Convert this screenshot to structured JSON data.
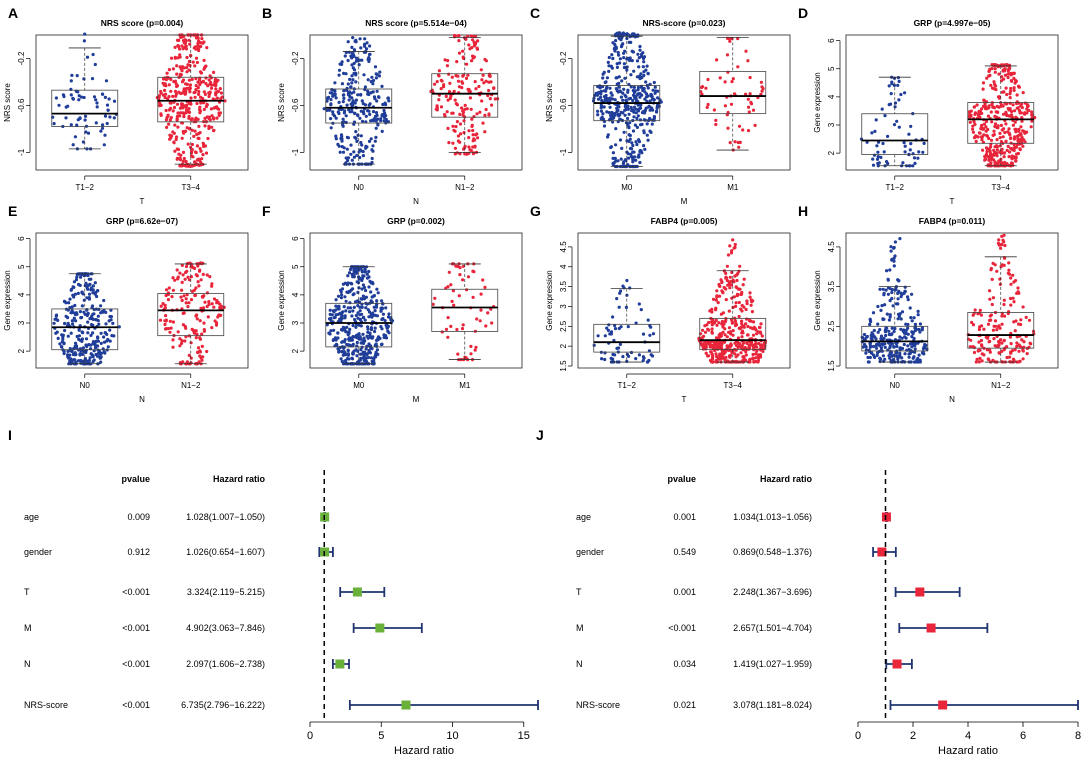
{
  "chart_data": [
    {
      "type": "beeswarm-boxplot",
      "label": "A",
      "title": "NRS score (p=0.004)",
      "ylabel": "NRS score",
      "xlabel": "T",
      "ylim": [
        -1.15,
        0.0
      ],
      "yticks": [
        -1.0,
        -0.6,
        -0.2
      ],
      "groups": [
        {
          "name": "T1−2",
          "color": "#1f3d99",
          "n": 70,
          "min": -0.97,
          "q1": -0.78,
          "median": -0.67,
          "q3": -0.47,
          "max": -0.11,
          "lo": -0.97,
          "hi": 0.02
        },
        {
          "name": "T3−4",
          "color": "#e8253a",
          "n": 420,
          "min": -1.1,
          "q1": -0.74,
          "median": -0.56,
          "q3": -0.36,
          "max": 0.0,
          "lo": -1.12,
          "hi": 0.0
        }
      ]
    },
    {
      "type": "beeswarm-boxplot",
      "label": "B",
      "title": "NRS score (p=5.514e−04)",
      "ylabel": "NRS score",
      "xlabel": "N",
      "ylim": [
        -1.15,
        0.0
      ],
      "yticks": [
        -1.0,
        -0.6,
        -0.2
      ],
      "groups": [
        {
          "name": "N0",
          "color": "#1f3d99",
          "n": 300,
          "min": -1.1,
          "q1": -0.75,
          "median": -0.62,
          "q3": -0.46,
          "max": -0.14,
          "lo": -1.1,
          "hi": -0.02
        },
        {
          "name": "N1−2",
          "color": "#e8253a",
          "n": 190,
          "min": -1.0,
          "q1": -0.7,
          "median": -0.5,
          "q3": -0.33,
          "max": -0.02,
          "lo": -1.02,
          "hi": 0.0
        }
      ]
    },
    {
      "type": "beeswarm-boxplot",
      "label": "C",
      "title": "NRS-score (p=0.023)",
      "ylabel": "NRS score",
      "xlabel": "M",
      "ylim": [
        -1.15,
        0.0
      ],
      "yticks": [
        -1.0,
        -0.6,
        -0.2
      ],
      "groups": [
        {
          "name": "M0",
          "color": "#1f3d99",
          "n": 450,
          "min": -1.12,
          "q1": -0.73,
          "median": -0.58,
          "q3": -0.43,
          "max": -0.01,
          "lo": -1.12,
          "hi": 0.02
        },
        {
          "name": "M1",
          "color": "#e8253a",
          "n": 60,
          "min": -0.98,
          "q1": -0.67,
          "median": -0.52,
          "q3": -0.31,
          "max": -0.02,
          "lo": -0.98,
          "hi": -0.04
        }
      ]
    },
    {
      "type": "beeswarm-boxplot",
      "label": "D",
      "title": "GRP (p=4.997e−05)",
      "ylabel": "Gene expression",
      "xlabel": "T",
      "ylim": [
        1.4,
        6.2
      ],
      "yticks": [
        2,
        3,
        4,
        5,
        6
      ],
      "groups": [
        {
          "name": "T1−2",
          "color": "#1f3d99",
          "n": 70,
          "min": 1.55,
          "q1": 1.95,
          "median": 2.45,
          "q3": 3.4,
          "max": 4.7,
          "lo": 1.55,
          "hi": 4.7
        },
        {
          "name": "T3−4",
          "color": "#e8253a",
          "n": 420,
          "min": 1.55,
          "q1": 2.35,
          "median": 3.2,
          "q3": 3.8,
          "max": 5.1,
          "lo": 1.55,
          "hi": 5.15
        }
      ]
    },
    {
      "type": "beeswarm-boxplot",
      "label": "E",
      "title": "GRP (p=6.62e−07)",
      "ylabel": "Gene expression",
      "xlabel": "N",
      "ylim": [
        1.4,
        6.2
      ],
      "yticks": [
        2,
        3,
        4,
        5,
        6
      ],
      "groups": [
        {
          "name": "N0",
          "color": "#1f3d99",
          "n": 300,
          "min": 1.55,
          "q1": 2.05,
          "median": 2.85,
          "q3": 3.5,
          "max": 4.75,
          "lo": 1.55,
          "hi": 4.75
        },
        {
          "name": "N1−2",
          "color": "#e8253a",
          "n": 190,
          "min": 1.55,
          "q1": 2.55,
          "median": 3.45,
          "q3": 4.05,
          "max": 5.1,
          "lo": 1.55,
          "hi": 5.15
        }
      ]
    },
    {
      "type": "beeswarm-boxplot",
      "label": "F",
      "title": "GRP (p=0.002)",
      "ylabel": "Gene expression",
      "xlabel": "M",
      "ylim": [
        1.4,
        6.2
      ],
      "yticks": [
        2,
        3,
        4,
        5,
        6
      ],
      "groups": [
        {
          "name": "M0",
          "color": "#1f3d99",
          "n": 450,
          "min": 1.55,
          "q1": 2.15,
          "median": 3.0,
          "q3": 3.7,
          "max": 5.0,
          "lo": 1.55,
          "hi": 5.0
        },
        {
          "name": "M1",
          "color": "#e8253a",
          "n": 60,
          "min": 1.7,
          "q1": 2.7,
          "median": 3.55,
          "q3": 4.2,
          "max": 5.1,
          "lo": 1.7,
          "hi": 5.1
        }
      ]
    },
    {
      "type": "beeswarm-boxplot",
      "label": "G",
      "title": "FABP4 (p=0.005)",
      "ylabel": "Gene expression",
      "xlabel": "T",
      "ylim": [
        1.45,
        4.85
      ],
      "yticks": [
        1.5,
        2.0,
        2.5,
        3.0,
        3.5,
        4.0,
        4.5
      ],
      "groups": [
        {
          "name": "T1−2",
          "color": "#1f3d99",
          "n": 70,
          "min": 1.6,
          "q1": 1.85,
          "median": 2.1,
          "q3": 2.55,
          "max": 3.45,
          "lo": 1.6,
          "hi": 3.7
        },
        {
          "name": "T3−4",
          "color": "#e8253a",
          "n": 420,
          "min": 1.6,
          "q1": 1.92,
          "median": 2.15,
          "q3": 2.7,
          "max": 3.9,
          "lo": 1.6,
          "hi": 4.75
        }
      ]
    },
    {
      "type": "beeswarm-boxplot",
      "label": "H",
      "title": "FABP4 (p=0.011)",
      "ylabel": "Gene expression",
      "xlabel": "N",
      "ylim": [
        1.45,
        4.85
      ],
      "yticks": [
        1.5,
        2.5,
        3.5,
        4.5
      ],
      "groups": [
        {
          "name": "N0",
          "color": "#1f3d99",
          "n": 300,
          "min": 1.6,
          "q1": 1.88,
          "median": 2.12,
          "q3": 2.5,
          "max": 3.5,
          "lo": 1.6,
          "hi": 4.75
        },
        {
          "name": "N1−2",
          "color": "#e8253a",
          "n": 190,
          "min": 1.6,
          "q1": 1.95,
          "median": 2.28,
          "q3": 2.85,
          "max": 4.25,
          "lo": 1.6,
          "hi": 4.8
        }
      ]
    },
    {
      "type": "forest",
      "label": "I",
      "headers": {
        "pvalue": "pvalue",
        "hr": "Hazard ratio"
      },
      "xlabel": "Hazard ratio",
      "xlim": [
        0,
        16
      ],
      "xticks": [
        0,
        5,
        10,
        15
      ],
      "refline": 1,
      "color": "#6ab13a",
      "rows": [
        {
          "name": "age",
          "pvalue": "0.009",
          "hr_text": "1.028(1.007−1.050)",
          "hr": 1.028,
          "lo": 1.007,
          "hi": 1.05
        },
        {
          "name": "gender",
          "pvalue": "0.912",
          "hr_text": "1.026(0.654−1.607)",
          "hr": 1.026,
          "lo": 0.654,
          "hi": 1.607
        },
        {
          "name": "T",
          "pvalue": "<0.001",
          "hr_text": "3.324(2.119−5.215)",
          "hr": 3.324,
          "lo": 2.119,
          "hi": 5.215
        },
        {
          "name": "M",
          "pvalue": "<0.001",
          "hr_text": "4.902(3.063−7.846)",
          "hr": 4.902,
          "lo": 3.063,
          "hi": 7.846
        },
        {
          "name": "N",
          "pvalue": "<0.001",
          "hr_text": "2.097(1.606−2.738)",
          "hr": 2.097,
          "lo": 1.606,
          "hi": 2.738
        },
        {
          "name": "NRS-score",
          "pvalue": "<0.001",
          "hr_text": "6.735(2.796−16.222)",
          "hr": 6.735,
          "lo": 2.796,
          "hi": 16.222
        }
      ]
    },
    {
      "type": "forest",
      "label": "J",
      "headers": {
        "pvalue": "pvalue",
        "hr": "Hazard ratio"
      },
      "xlabel": "Hazard ratio",
      "xlim": [
        0,
        8
      ],
      "xticks": [
        0,
        2,
        4,
        6,
        8
      ],
      "refline": 1,
      "color": "#e8253a",
      "rows": [
        {
          "name": "age",
          "pvalue": "0.001",
          "hr_text": "1.034(1.013−1.056)",
          "hr": 1.034,
          "lo": 1.013,
          "hi": 1.056
        },
        {
          "name": "gender",
          "pvalue": "0.549",
          "hr_text": "0.869(0.548−1.376)",
          "hr": 0.869,
          "lo": 0.548,
          "hi": 1.376
        },
        {
          "name": "T",
          "pvalue": "0.001",
          "hr_text": "2.248(1.367−3.696)",
          "hr": 2.248,
          "lo": 1.367,
          "hi": 3.696
        },
        {
          "name": "M",
          "pvalue": "<0.001",
          "hr_text": "2.657(1.501−4.704)",
          "hr": 2.657,
          "lo": 1.501,
          "hi": 4.704
        },
        {
          "name": "N",
          "pvalue": "0.034",
          "hr_text": "1.419(1.027−1.959)",
          "hr": 1.419,
          "lo": 1.027,
          "hi": 1.959
        },
        {
          "name": "NRS-score",
          "pvalue": "0.021",
          "hr_text": "3.078(1.181−8.024)",
          "hr": 3.078,
          "lo": 1.181,
          "hi": 8.024
        }
      ]
    }
  ]
}
